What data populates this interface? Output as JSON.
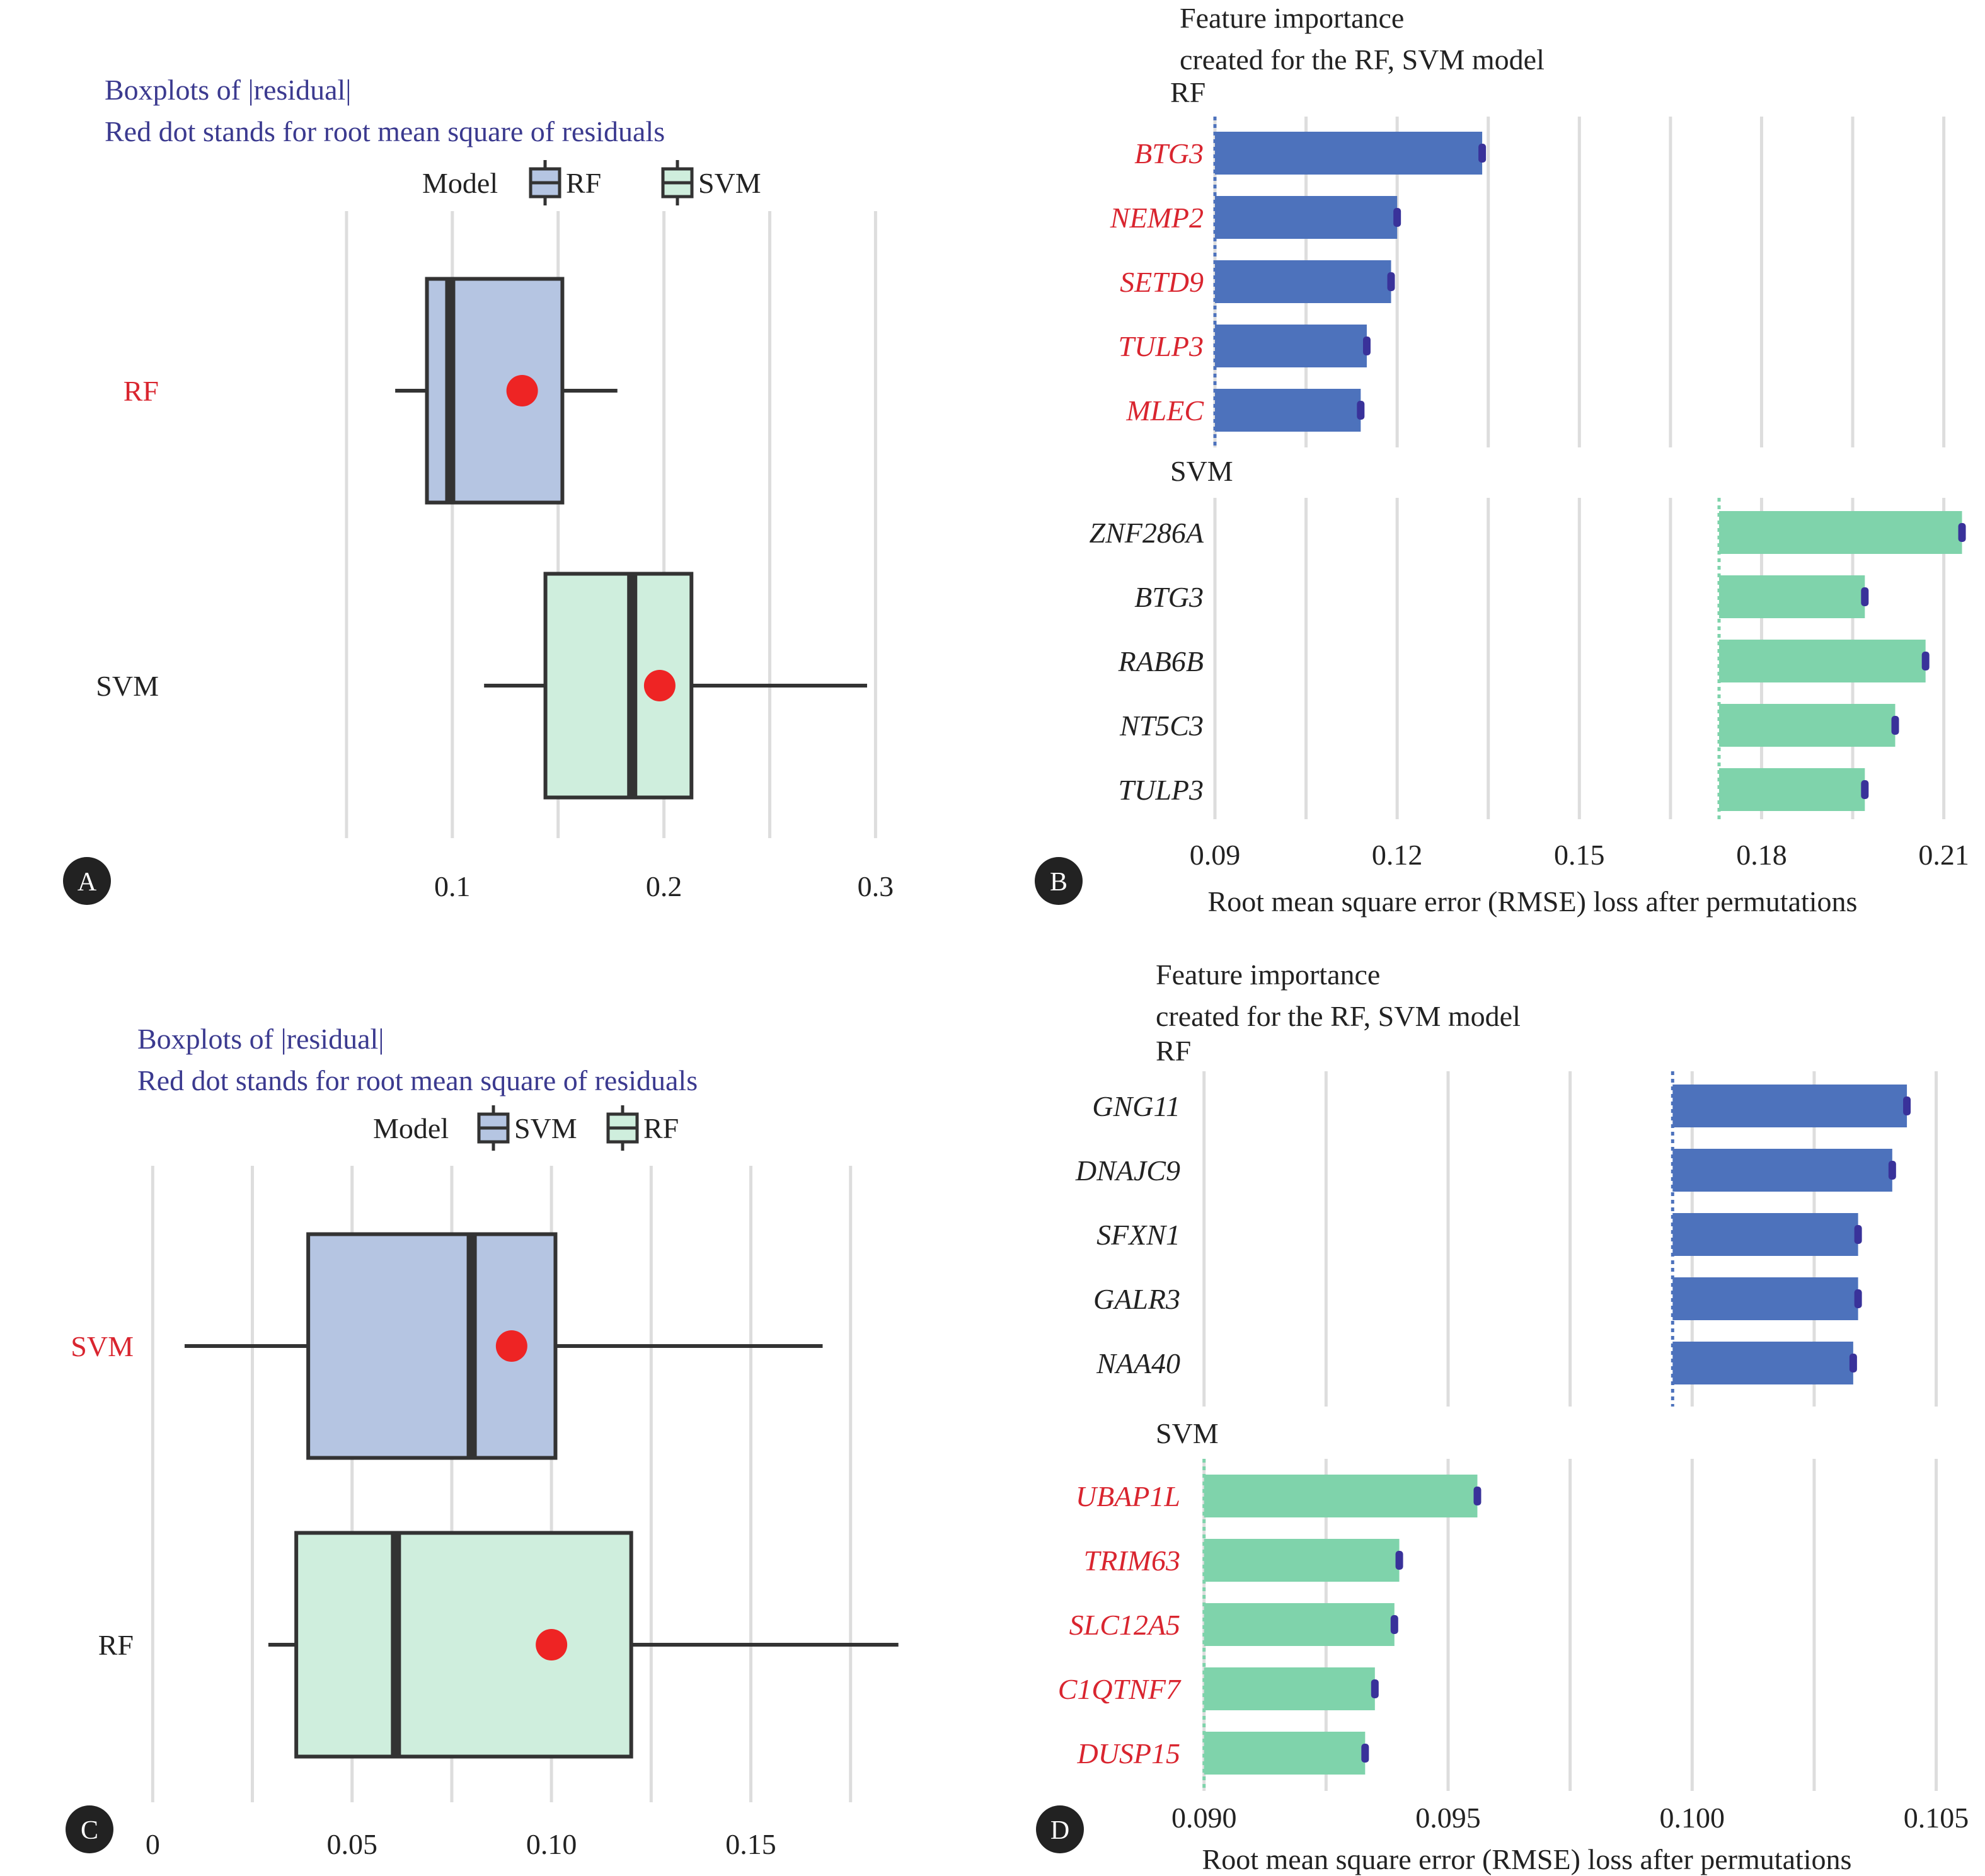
{
  "colors": {
    "title": "#3b3a8f",
    "highlight": "#d9252f",
    "normal": "#222222",
    "box_first": "#b5c5e2",
    "box_second": "#cfeedd",
    "bar_first": "#4d72bc",
    "bar_second": "#7fd3ab",
    "error_mark": "#39329a",
    "rmse_dot": "#ee2424",
    "grid": "#dddddd",
    "badge": "#222222"
  },
  "chart_data": [
    {
      "panel": "A",
      "type": "box",
      "title": [
        "Boxplots of |residual|",
        "Red dot stands for root mean square of residuals"
      ],
      "legend": {
        "title": "Model",
        "entries": [
          "RF",
          "SVM"
        ],
        "placement": "top"
      },
      "xlim": [
        0.0,
        0.31
      ],
      "ticks": [
        0.1,
        0.2,
        0.3
      ],
      "tick_labels": [
        "0.1",
        "0.2",
        "0.3"
      ],
      "grid": true,
      "categories": [
        "RF",
        "SVM"
      ],
      "highlight_category": "RF",
      "boxes": [
        {
          "name": "RF",
          "min": 0.073,
          "q1": 0.088,
          "median": 0.099,
          "q3": 0.152,
          "max": 0.178,
          "rmse": 0.133
        },
        {
          "name": "SVM",
          "min": 0.115,
          "q1": 0.144,
          "median": 0.185,
          "q3": 0.213,
          "max": 0.296,
          "rmse": 0.198
        }
      ]
    },
    {
      "panel": "B",
      "type": "bar",
      "title": [
        "Feature importance",
        "created for the RF, SVM model"
      ],
      "xlabel": "Root mean square error (RMSE) loss after permutations",
      "xlim": [
        0.09,
        0.22
      ],
      "ticks": [
        0.09,
        0.12,
        0.15,
        0.18,
        0.21
      ],
      "tick_labels": [
        "0.09",
        "0.12",
        "0.15",
        "0.18",
        "0.21"
      ],
      "grid": true,
      "groups": [
        {
          "name": "RF",
          "highlight": true,
          "baseline": 0.09,
          "features": [
            "BTG3",
            "NEMP2",
            "SETD9",
            "TULP3",
            "MLEC"
          ],
          "values": [
            0.134,
            0.12,
            0.119,
            0.115,
            0.114
          ]
        },
        {
          "name": "SVM",
          "highlight": false,
          "baseline": 0.173,
          "features": [
            "ZNF286A",
            "BTG3",
            "RAB6B",
            "NT5C3",
            "TULP3"
          ],
          "values": [
            0.213,
            0.197,
            0.207,
            0.202,
            0.197
          ]
        }
      ]
    },
    {
      "panel": "C",
      "type": "box",
      "title": [
        "Boxplots of |residual|",
        "Red dot stands for root mean square of residuals"
      ],
      "legend": {
        "title": "Model",
        "entries": [
          "SVM",
          "RF"
        ],
        "placement": "top"
      },
      "xlim": [
        -0.001,
        0.188
      ],
      "ticks": [
        0.0,
        0.05,
        0.1,
        0.15
      ],
      "tick_labels": [
        "0",
        "0.05",
        "0.10",
        "0.15"
      ],
      "grid": true,
      "categories": [
        "SVM",
        "RF"
      ],
      "highlight_category": "SVM",
      "boxes": [
        {
          "name": "SVM",
          "min": 0.008,
          "q1": 0.039,
          "median": 0.08,
          "q3": 0.101,
          "max": 0.168,
          "rmse": 0.09
        },
        {
          "name": "RF",
          "min": 0.029,
          "q1": 0.036,
          "median": 0.061,
          "q3": 0.12,
          "max": 0.187,
          "rmse": 0.1
        }
      ]
    },
    {
      "panel": "D",
      "type": "bar",
      "title": [
        "Feature importance",
        "created for the RF, SVM model"
      ],
      "xlabel": "Root mean square error (RMSE) loss after permutations",
      "xlim": [
        0.0895,
        0.106
      ],
      "ticks": [
        0.09,
        0.095,
        0.1,
        0.105
      ],
      "tick_labels": [
        "0.090",
        "0.095",
        "0.100",
        "0.105"
      ],
      "grid": true,
      "groups": [
        {
          "name": "RF",
          "highlight": false,
          "baseline": 0.0996,
          "features": [
            "GNG11",
            "DNAJC9",
            "SFXN1",
            "GALR3",
            "NAA40"
          ],
          "values": [
            0.1044,
            0.1041,
            0.1034,
            0.1034,
            0.1033
          ]
        },
        {
          "name": "SVM",
          "highlight": true,
          "baseline": 0.09,
          "features": [
            "UBAP1L",
            "TRIM63",
            "SLC12A5",
            "C1QTNF7",
            "DUSP15"
          ],
          "values": [
            0.0956,
            0.094,
            0.0939,
            0.0935,
            0.0933
          ]
        }
      ]
    }
  ]
}
